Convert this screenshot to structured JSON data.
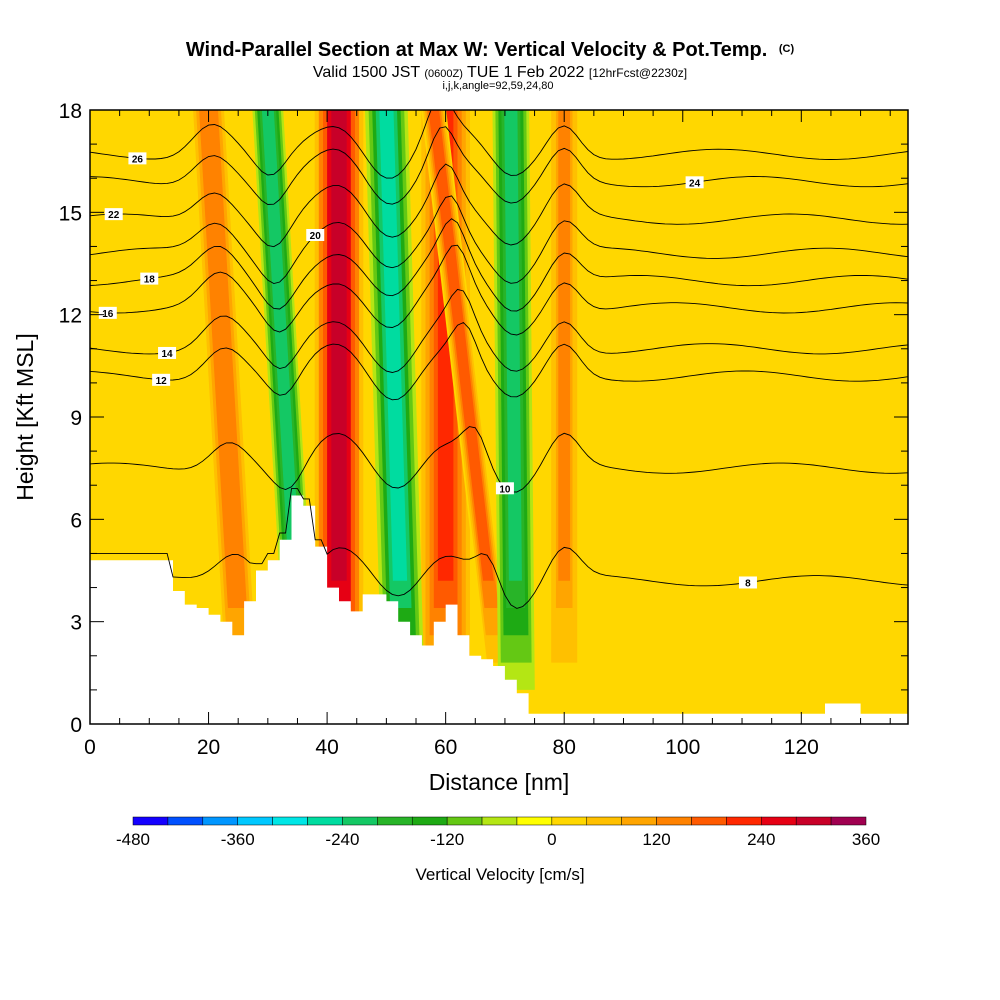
{
  "header": {
    "title": "Wind-Parallel Section at Max W: Vertical Velocity & Pot.Temp.",
    "title_mark": "(C)",
    "subtitle_prefix": "Valid 1500 JST",
    "subtitle_utc": "(0600Z)",
    "subtitle_date": "TUE 1 Feb 2022",
    "subtitle_fcst": "[12hrFcst@2230z]",
    "subtitle2": "i,j,k,angle=92,59,24,80"
  },
  "chart_data": {
    "type": "heatmap",
    "xlabel": "Distance [nm]",
    "ylabel": "Height [Kft MSL]",
    "xlim": [
      0,
      138
    ],
    "ylim": [
      0,
      18
    ],
    "x_ticks": [
      0,
      20,
      40,
      60,
      80,
      100,
      120
    ],
    "x_tick_labels": [
      "0",
      "20",
      "40",
      "60",
      "80",
      "100",
      "120"
    ],
    "y_ticks": [
      0,
      3,
      6,
      9,
      12,
      15,
      18
    ],
    "y_tick_labels": [
      "0",
      "3",
      "6",
      "9",
      "12",
      "15",
      "18"
    ],
    "field": "Vertical Velocity",
    "colorbar": {
      "label": "Vertical Velocity [cm/s]",
      "min": -480,
      "max": 360,
      "step": 40,
      "tick_values": [
        -480,
        -360,
        -240,
        -120,
        0,
        120,
        240,
        360
      ],
      "tick_labels": [
        "-480",
        "-360",
        "-240",
        "-120",
        "0",
        "120",
        "240",
        "360"
      ],
      "colors": [
        "#1400ff",
        "#0050ff",
        "#0096ff",
        "#00c8ff",
        "#00e6e6",
        "#00dca0",
        "#14c864",
        "#28b428",
        "#1eaa14",
        "#64c814",
        "#b4e614",
        "#ffff00",
        "#ffd700",
        "#ffc000",
        "#ffa500",
        "#ff8200",
        "#ff5a00",
        "#ff2800",
        "#e60014",
        "#c80028",
        "#a00050",
        "#780078"
      ]
    },
    "updrafts": [
      {
        "x0": 26,
        "x1": 20,
        "w": 5,
        "value": 150
      },
      {
        "x0": 42,
        "x1": 42,
        "w": 7,
        "value": 300
      },
      {
        "x0": 60,
        "x1": 60,
        "w": 7,
        "value": 200
      },
      {
        "x0": 80,
        "x1": 80,
        "w": 4,
        "value": 120
      },
      {
        "x0": 70,
        "x1": 58,
        "w": 3,
        "value": 180
      }
    ],
    "downdrafts": [
      {
        "x0": 36,
        "x1": 30,
        "w": 4,
        "value": -220
      },
      {
        "x0": 53,
        "x1": 50,
        "w": 6,
        "value": -260
      },
      {
        "x0": 72,
        "x1": 71,
        "w": 5,
        "value": -240
      }
    ],
    "terrain": [
      [
        0,
        4.8
      ],
      [
        12,
        4.8
      ],
      [
        14,
        3.9
      ],
      [
        16,
        3.5
      ],
      [
        18,
        3.4
      ],
      [
        20,
        3.2
      ],
      [
        22,
        3.0
      ],
      [
        24,
        2.6
      ],
      [
        26,
        3.6
      ],
      [
        28,
        4.5
      ],
      [
        30,
        4.8
      ],
      [
        32,
        5.4
      ],
      [
        34,
        6.7
      ],
      [
        36,
        6.4
      ],
      [
        38,
        5.2
      ],
      [
        40,
        4.0
      ],
      [
        42,
        3.6
      ],
      [
        44,
        3.3
      ],
      [
        46,
        3.8
      ],
      [
        50,
        3.6
      ],
      [
        52,
        3.0
      ],
      [
        54,
        2.6
      ],
      [
        56,
        2.3
      ],
      [
        58,
        3.0
      ],
      [
        60,
        3.5
      ],
      [
        62,
        2.6
      ],
      [
        64,
        2.0
      ],
      [
        66,
        1.9
      ],
      [
        68,
        1.7
      ],
      [
        70,
        1.3
      ],
      [
        72,
        0.9
      ],
      [
        74,
        0.3
      ],
      [
        122,
        0.3
      ],
      [
        124,
        0.6
      ],
      [
        128,
        0.6
      ],
      [
        130,
        0.3
      ],
      [
        138,
        0.3
      ]
    ],
    "theta_contours": [
      {
        "level": 8,
        "y0": 4.2,
        "label_x": 111
      },
      {
        "level": 10,
        "y0": 7.5,
        "label_x": 70
      },
      {
        "level": 12,
        "y0": 10.2,
        "label_x": 12
      },
      {
        "level": 14,
        "y0": 11.0,
        "label_x": 13
      },
      {
        "level": 16,
        "y0": 12.2,
        "label_x": 3
      },
      {
        "level": 18,
        "y0": 13.0,
        "label_x": 10
      },
      {
        "level": 20,
        "y0": 13.8,
        "label_x": 38
      },
      {
        "level": 22,
        "y0": 14.8,
        "label_x": 4
      },
      {
        "level": 24,
        "y0": 15.9,
        "label_x": 102
      },
      {
        "level": 26,
        "y0": 16.7,
        "label_x": 8
      }
    ]
  }
}
